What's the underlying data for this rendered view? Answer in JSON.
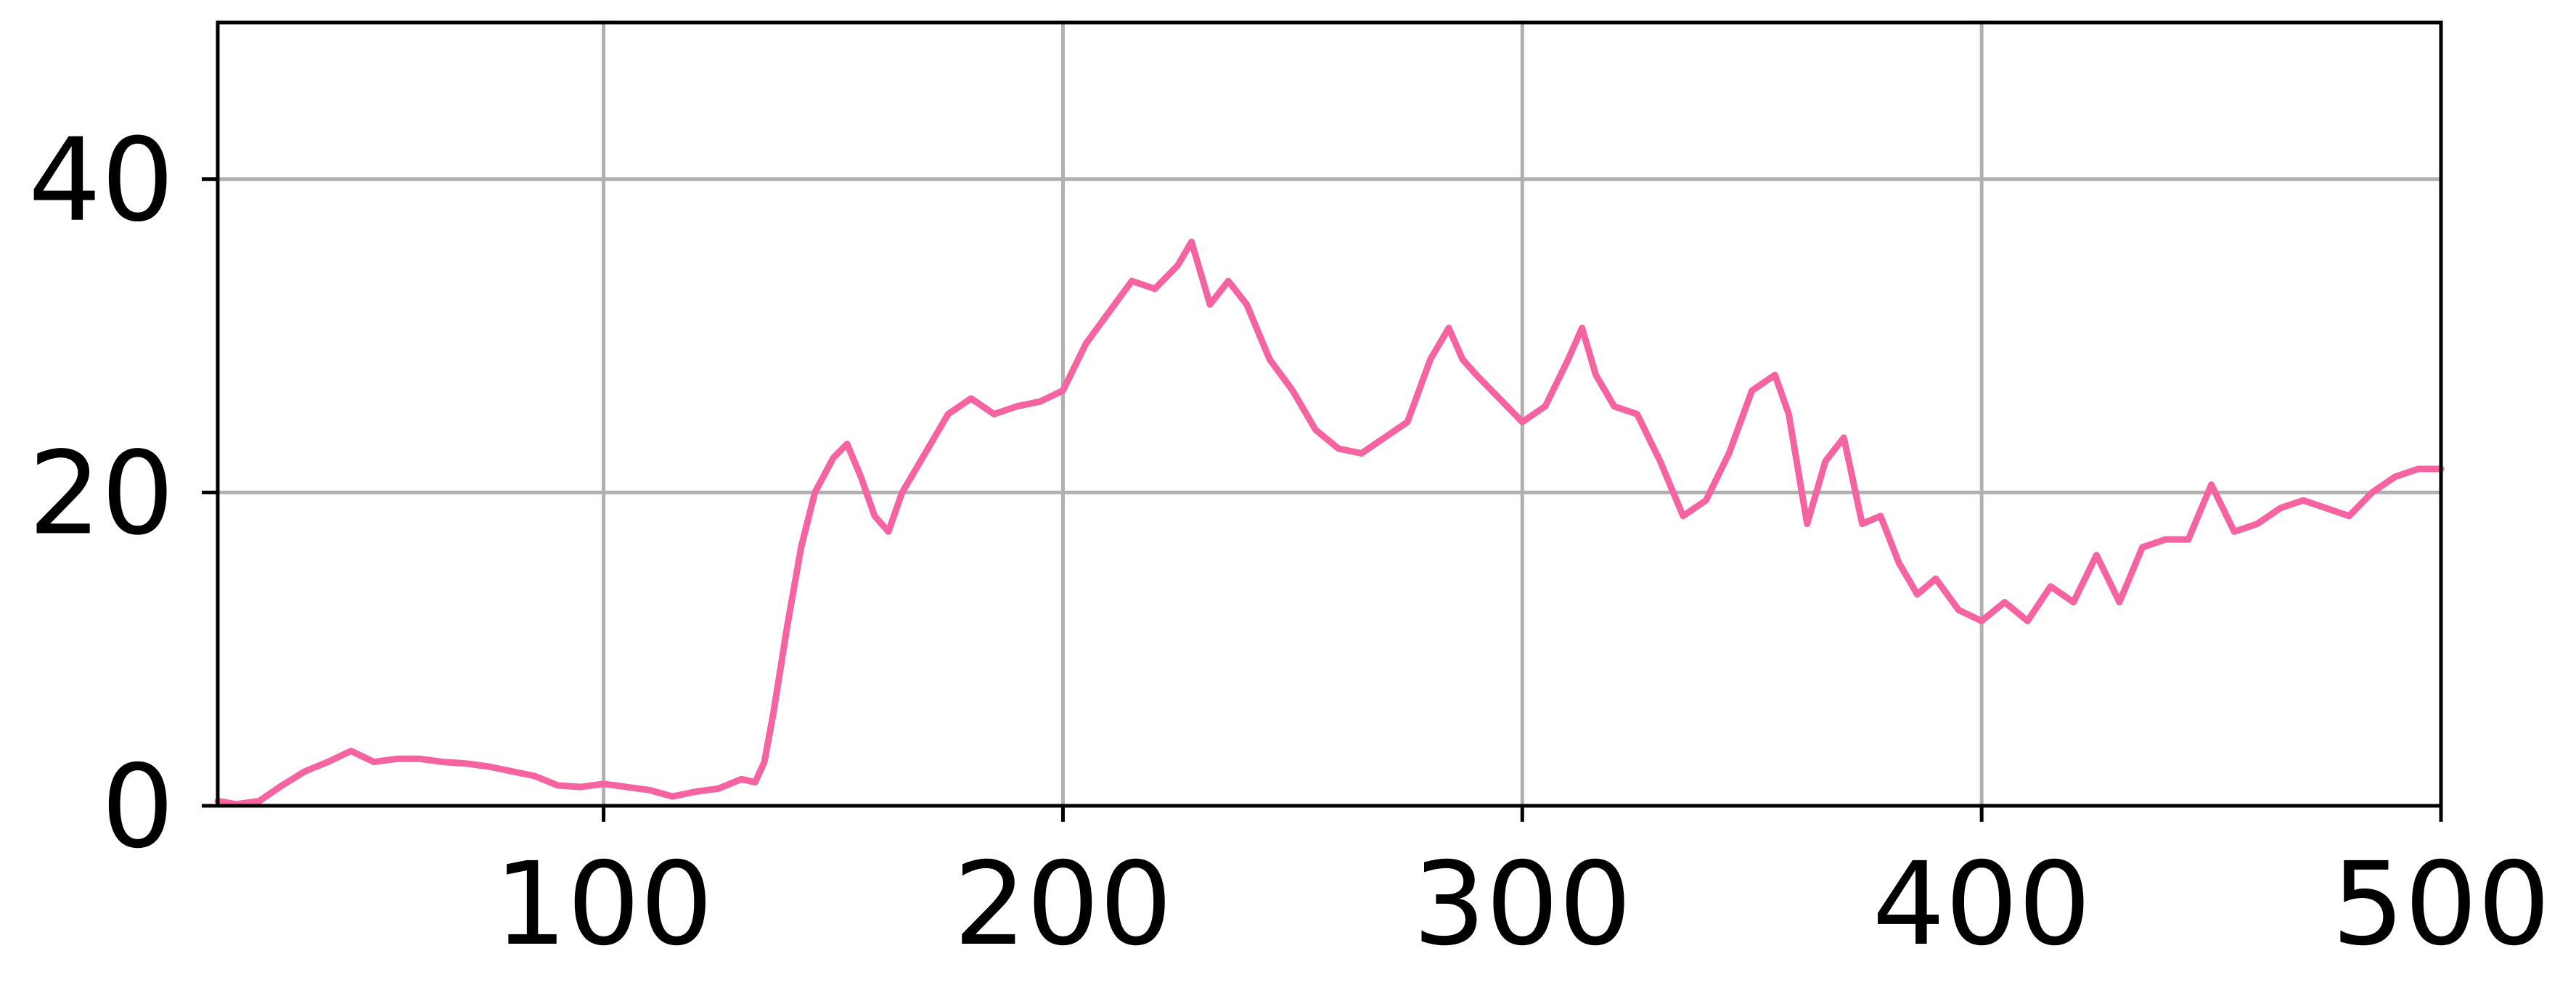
{
  "chart_data": {
    "type": "line",
    "title": "",
    "xlabel": "",
    "ylabel": "",
    "xlim": [
      16,
      500
    ],
    "ylim": [
      0,
      50
    ],
    "grid": true,
    "x_ticks": [
      100,
      200,
      300,
      400,
      500
    ],
    "y_ticks": [
      0,
      20,
      40
    ],
    "x_tick_labels": [
      "100",
      "200",
      "300",
      "400",
      "500"
    ],
    "y_tick_labels": [
      "0",
      "20",
      "40"
    ],
    "series": [
      {
        "color": "#f564a0",
        "x": [
          16,
          20,
          25,
          30,
          35,
          40,
          45,
          50,
          55,
          60,
          65,
          70,
          75,
          80,
          85,
          90,
          95,
          100,
          105,
          110,
          115,
          120,
          125,
          130,
          133,
          135,
          137,
          140,
          143,
          146,
          150,
          153,
          156,
          159,
          162,
          165,
          170,
          175,
          180,
          185,
          190,
          195,
          200,
          205,
          210,
          215,
          220,
          225,
          228,
          232,
          236,
          240,
          245,
          250,
          255,
          260,
          265,
          270,
          275,
          280,
          284,
          287,
          290,
          295,
          300,
          305,
          310,
          313,
          316,
          320,
          325,
          330,
          335,
          340,
          345,
          350,
          355,
          358,
          362,
          366,
          370,
          374,
          378,
          382,
          386,
          390,
          395,
          400,
          405,
          410,
          415,
          420,
          425,
          430,
          435,
          440,
          445,
          450,
          455,
          460,
          465,
          470,
          475,
          480,
          485,
          490,
          495,
          500
        ],
        "values": [
          0.3,
          0.1,
          0.3,
          1.3,
          2.2,
          2.8,
          3.5,
          2.8,
          3.0,
          3.0,
          2.8,
          2.7,
          2.5,
          2.2,
          1.9,
          1.3,
          1.2,
          1.4,
          1.2,
          1.0,
          0.6,
          0.9,
          1.1,
          1.7,
          1.5,
          2.8,
          6.0,
          11.5,
          16.5,
          20.0,
          22.2,
          23.1,
          21.0,
          18.5,
          17.5,
          20.0,
          22.5,
          25.0,
          26.0,
          25.0,
          25.5,
          25.8,
          26.5,
          29.5,
          31.5,
          33.5,
          33.0,
          34.5,
          36.0,
          32.0,
          33.5,
          32.0,
          28.5,
          26.5,
          24.0,
          22.8,
          22.5,
          23.5,
          24.5,
          28.5,
          30.5,
          28.5,
          27.5,
          26.0,
          24.5,
          25.5,
          28.5,
          30.5,
          27.5,
          25.5,
          25.0,
          22.0,
          18.5,
          19.5,
          22.5,
          26.5,
          27.5,
          25.0,
          18.0,
          22.0,
          23.5,
          18.0,
          18.5,
          15.5,
          13.5,
          14.5,
          12.5,
          11.8,
          13.0,
          11.8,
          14.0,
          13.0,
          16.0,
          13.0,
          16.5,
          17.0,
          17.0,
          20.5,
          17.5,
          18.0,
          19.0,
          19.5,
          19.0,
          18.5,
          20.0,
          21.0,
          21.5,
          21.5
        ]
      }
    ]
  }
}
